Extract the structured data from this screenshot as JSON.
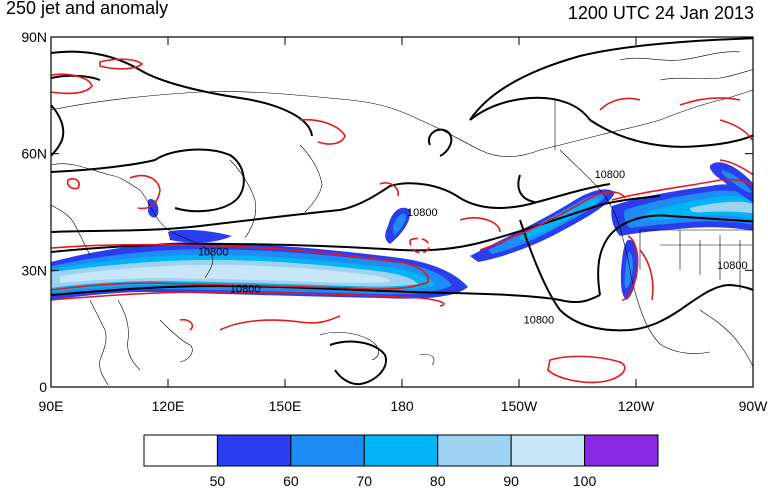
{
  "header": {
    "title": "250 jet and anomaly",
    "datetime": "1200 UTC 24 Jan 2013"
  },
  "axes": {
    "y_ticks": [
      {
        "label": "90N",
        "lat": 90
      },
      {
        "label": "60N",
        "lat": 60
      },
      {
        "label": "30N",
        "lat": 30
      },
      {
        "label": "0",
        "lat": 0
      }
    ],
    "x_ticks": [
      {
        "label": "90E",
        "lon": 90
      },
      {
        "label": "120E",
        "lon": 120
      },
      {
        "label": "150E",
        "lon": 150
      },
      {
        "label": "180",
        "lon": 180
      },
      {
        "label": "150W",
        "lon": 210
      },
      {
        "label": "120W",
        "lon": 240
      },
      {
        "label": "90W",
        "lon": 270
      }
    ]
  },
  "colorbar": {
    "levels": [
      "50",
      "60",
      "70",
      "80",
      "90",
      "100"
    ],
    "colors": [
      "#ffffff",
      "#2a3ef0",
      "#1e8cf5",
      "#00b4f5",
      "#9dd2f0",
      "#c8e6f8",
      "#8a28e6"
    ]
  },
  "contours": {
    "heights": [
      {
        "label": "10800",
        "lon": 131.6,
        "lat": 34.8
      },
      {
        "label": "10800",
        "lon": 139.8,
        "lat": 25.3
      },
      {
        "label": "10800",
        "lon": 233.3,
        "lat": 54.8
      },
      {
        "label": "10800",
        "lon": 215.1,
        "lat": 17.4
      },
      {
        "label": "10800",
        "lon": 264.7,
        "lat": 31.4
      },
      {
        "label": "10800",
        "lon": 185.2,
        "lat": 45.0
      }
    ]
  },
  "colors": {
    "height_contour": "#000000",
    "anomaly_contour": "#e31a1c",
    "coastline": "#000000"
  }
}
